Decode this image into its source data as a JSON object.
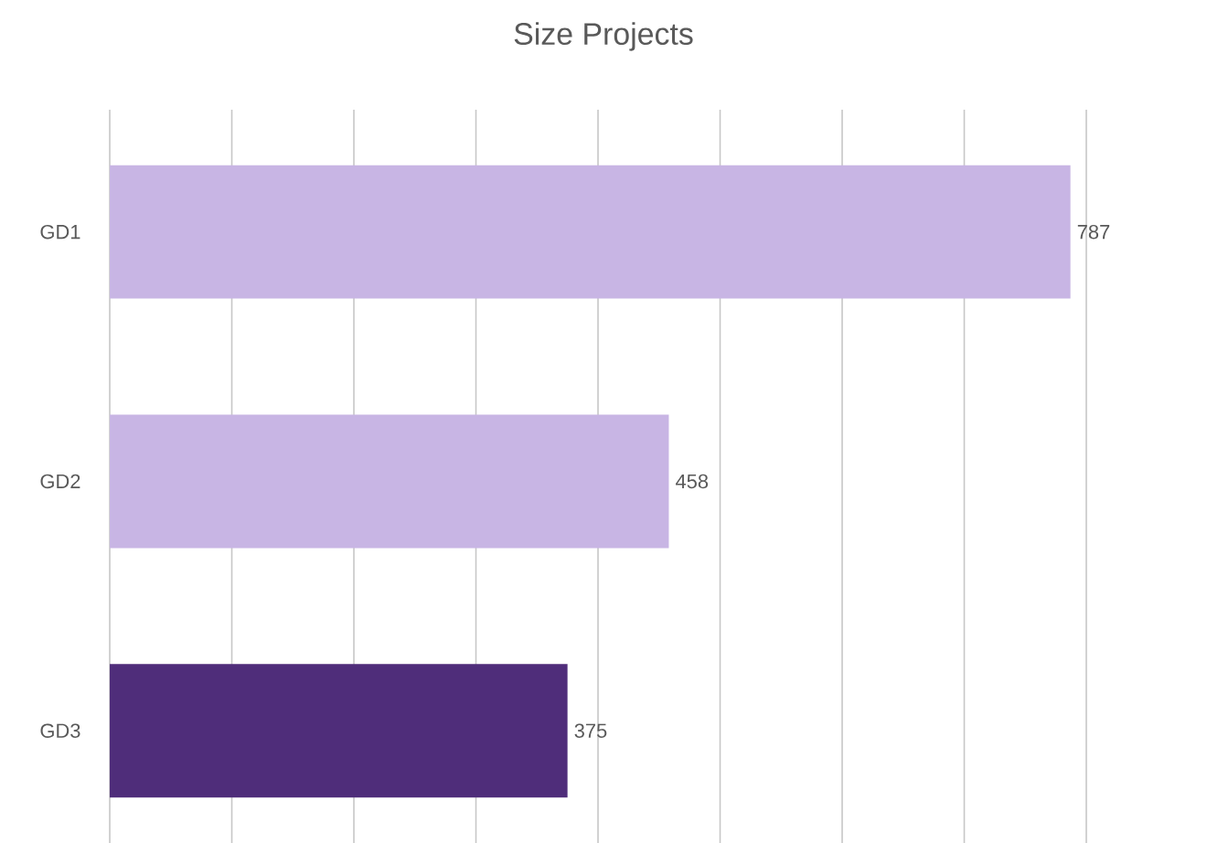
{
  "chart_data": {
    "type": "bar",
    "orientation": "horizontal",
    "title": "Size Projects",
    "categories": [
      "GD1",
      "GD2",
      "GD3"
    ],
    "values": [
      787,
      458,
      375
    ],
    "colors": [
      "#c8b5e4",
      "#c8b5e4",
      "#4f2d7a"
    ],
    "xlim": [
      0,
      800
    ],
    "xticks": [
      {
        "value": 0,
        "label": null
      },
      {
        "value": 100,
        "label": null
      },
      {
        "value": 200,
        "label": null
      },
      {
        "value": 300,
        "label": null
      },
      {
        "value": 400,
        "label": null
      },
      {
        "value": 500,
        "label": null
      },
      {
        "value": 600,
        "label": null
      },
      {
        "value": 700,
        "label": null
      },
      {
        "value": 800,
        "label": null
      }
    ],
    "tick_labels": "y",
    "grid": "x",
    "data_labels": true
  }
}
